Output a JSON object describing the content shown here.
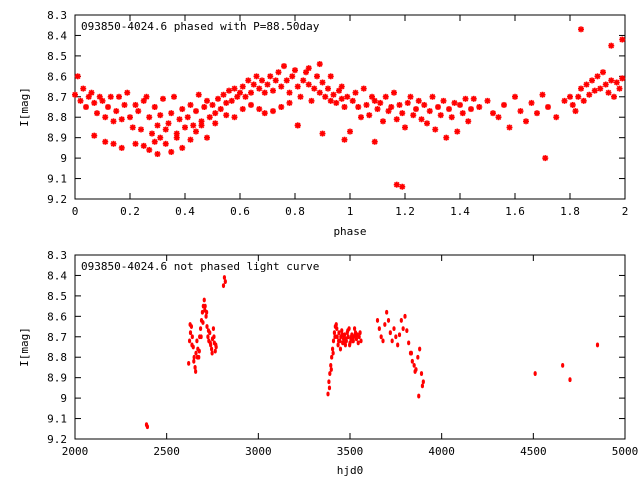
{
  "chart_data": [
    {
      "type": "scatter",
      "title": "093850-4024.6 phased with P=88.50day",
      "xlabel": "phase",
      "ylabel": "I[mag]",
      "xlim": [
        0,
        2
      ],
      "ylim": [
        8.3,
        9.2
      ],
      "y_inverted": true,
      "xticks": [
        "0",
        "0.2",
        "0.4",
        "0.6",
        "0.8",
        "1",
        "1.2",
        "1.4",
        "1.6",
        "1.8",
        "2"
      ],
      "yticks": [
        "8.3",
        "8.4",
        "8.5",
        "8.6",
        "8.7",
        "8.8",
        "8.9",
        "9",
        "9.1",
        "9.2"
      ],
      "grid": false,
      "marker": "star",
      "color": "#ff0000",
      "series": [
        {
          "x": [
            0.0,
            0.01,
            0.02,
            0.03,
            0.04,
            0.05,
            0.06,
            0.07,
            0.08,
            0.09,
            0.1,
            0.11,
            0.12,
            0.13,
            0.14,
            0.15,
            0.16,
            0.17,
            0.18,
            0.19,
            0.2,
            0.21,
            0.22,
            0.23,
            0.24,
            0.25,
            0.26,
            0.27,
            0.28,
            0.29,
            0.3,
            0.31,
            0.32,
            0.33,
            0.34,
            0.35,
            0.36,
            0.37,
            0.38,
            0.39,
            0.4,
            0.41,
            0.42,
            0.43,
            0.44,
            0.45,
            0.46,
            0.47,
            0.48,
            0.49,
            0.5,
            0.51,
            0.52,
            0.53,
            0.54,
            0.55,
            0.56,
            0.57,
            0.58,
            0.59,
            0.6,
            0.61,
            0.62,
            0.63,
            0.64,
            0.65,
            0.66,
            0.67,
            0.68,
            0.69,
            0.7,
            0.71,
            0.72,
            0.73,
            0.74,
            0.75,
            0.76,
            0.77,
            0.78,
            0.79,
            0.8,
            0.81,
            0.82,
            0.83,
            0.84,
            0.85,
            0.86,
            0.87,
            0.88,
            0.89,
            0.9,
            0.91,
            0.92,
            0.93,
            0.94,
            0.95,
            0.96,
            0.97,
            0.98,
            0.99,
            0.07,
            0.11,
            0.14,
            0.17,
            0.22,
            0.25,
            0.27,
            0.29,
            0.3,
            0.31,
            0.33,
            0.35,
            0.37,
            0.39,
            0.42,
            0.44,
            0.46,
            0.48,
            0.51,
            0.55,
            0.58,
            0.61,
            0.64,
            0.67,
            0.69,
            0.72,
            0.75,
            0.78,
            0.81,
            0.85,
            0.89,
            0.93,
            0.97,
            1.0,
            1.01,
            1.02,
            1.03,
            1.04,
            1.05,
            1.06,
            1.07,
            1.08,
            1.09,
            1.1,
            1.11,
            1.12,
            1.13,
            1.14,
            1.15,
            1.16,
            1.17,
            1.18,
            1.19,
            1.2,
            1.21,
            1.22,
            1.23,
            1.24,
            1.25,
            1.26,
            1.27,
            1.28,
            1.29,
            1.3,
            1.31,
            1.32,
            1.33,
            1.34,
            1.35,
            1.36,
            1.37,
            1.38,
            1.39,
            1.4,
            1.41,
            1.42,
            1.43,
            1.44,
            1.45,
            1.47,
            1.5,
            1.52,
            1.54,
            1.56,
            1.58,
            1.6,
            1.62,
            1.64,
            1.66,
            1.68,
            1.7,
            1.72,
            1.75,
            1.78,
            1.8,
            1.81,
            1.82,
            1.83,
            1.84,
            1.85,
            1.86,
            1.87,
            1.88,
            1.89,
            1.9,
            1.91,
            1.92,
            1.93,
            1.94,
            1.95,
            1.96,
            1.97,
            1.98,
            1.99,
            1.17,
            1.19,
            1.09,
            0.98,
            1.71,
            1.84,
            1.95,
            1.99,
            0.81,
            0.9
          ],
          "y": [
            8.69,
            8.6,
            8.72,
            8.66,
            8.75,
            8.7,
            8.68,
            8.73,
            8.78,
            8.7,
            8.72,
            8.8,
            8.75,
            8.7,
            8.82,
            8.77,
            8.7,
            8.81,
            8.74,
            8.68,
            8.8,
            8.85,
            8.74,
            8.77,
            8.86,
            8.72,
            8.7,
            8.8,
            8.88,
            8.75,
            8.84,
            8.79,
            8.71,
            8.86,
            8.83,
            8.78,
            8.7,
            8.9,
            8.81,
            8.76,
            8.85,
            8.8,
            8.74,
            8.84,
            8.77,
            8.69,
            8.82,
            8.75,
            8.72,
            8.8,
            8.74,
            8.78,
            8.71,
            8.76,
            8.69,
            8.73,
            8.67,
            8.72,
            8.66,
            8.7,
            8.68,
            8.65,
            8.7,
            8.62,
            8.68,
            8.64,
            8.6,
            8.66,
            8.62,
            8.68,
            8.64,
            8.6,
            8.67,
            8.62,
            8.58,
            8.65,
            8.55,
            8.62,
            8.68,
            8.6,
            8.57,
            8.65,
            8.7,
            8.62,
            8.58,
            8.64,
            8.72,
            8.66,
            8.6,
            8.68,
            8.63,
            8.7,
            8.66,
            8.72,
            8.69,
            8.73,
            8.67,
            8.71,
            8.75,
            8.7,
            8.89,
            8.92,
            8.93,
            8.95,
            8.93,
            8.94,
            8.96,
            8.92,
            8.98,
            8.9,
            8.93,
            8.97,
            8.88,
            8.95,
            8.91,
            8.87,
            8.84,
            8.9,
            8.83,
            8.79,
            8.8,
            8.76,
            8.74,
            8.76,
            8.78,
            8.77,
            8.75,
            8.73,
            8.84,
            8.56,
            8.54,
            8.6,
            8.65,
            8.87,
            8.72,
            8.68,
            8.75,
            8.8,
            8.66,
            8.74,
            8.79,
            8.7,
            8.72,
            8.76,
            8.73,
            8.82,
            8.7,
            8.77,
            8.75,
            8.68,
            8.81,
            8.74,
            8.78,
            8.85,
            8.73,
            8.7,
            8.79,
            8.76,
            8.72,
            8.81,
            8.74,
            8.83,
            8.77,
            8.7,
            8.86,
            8.75,
            8.79,
            8.72,
            8.9,
            8.76,
            8.8,
            8.73,
            8.87,
            8.74,
            8.78,
            8.71,
            8.82,
            8.76,
            8.71,
            8.75,
            8.72,
            8.78,
            8.8,
            8.74,
            8.85,
            8.7,
            8.77,
            8.82,
            8.73,
            8.78,
            8.69,
            8.75,
            8.8,
            8.72,
            8.7,
            8.74,
            8.77,
            8.7,
            8.66,
            8.72,
            8.64,
            8.69,
            8.62,
            8.67,
            8.6,
            8.66,
            8.58,
            8.64,
            8.68,
            8.62,
            8.7,
            8.63,
            8.66,
            8.61,
            9.13,
            9.14,
            8.92,
            8.91,
            9.0,
            8.37,
            8.45,
            8.42,
            8.84,
            8.88
          ]
        }
      ]
    },
    {
      "type": "scatter",
      "title": "093850-4024.6 not phased light curve",
      "xlabel": "hjd0",
      "ylabel": "I[mag]",
      "xlim": [
        2000,
        5000
      ],
      "ylim": [
        8.3,
        9.2
      ],
      "y_inverted": true,
      "xticks": [
        "2000",
        "2500",
        "3000",
        "3500",
        "4000",
        "4500",
        "5000"
      ],
      "yticks": [
        "8.3",
        "8.4",
        "8.5",
        "8.6",
        "8.7",
        "8.8",
        "8.9",
        "9",
        "9.1",
        "9.2"
      ],
      "grid": false,
      "marker": "dot",
      "color": "#ff0000",
      "series": [
        {
          "x": [
            2390,
            2395,
            2620,
            2625,
            2630,
            2635,
            2640,
            2645,
            2650,
            2655,
            2660,
            2665,
            2670,
            2675,
            2680,
            2685,
            2690,
            2695,
            2700,
            2705,
            2710,
            2715,
            2720,
            2725,
            2730,
            2735,
            2740,
            2745,
            2750,
            2755,
            2760,
            2765,
            2770,
            2628,
            2638,
            2648,
            2658,
            2668,
            2678,
            2688,
            2698,
            2708,
            2718,
            2728,
            2738,
            2748,
            2758,
            2768,
            2810,
            2815,
            2820,
            3380,
            3385,
            3390,
            3395,
            3400,
            3405,
            3410,
            3415,
            3420,
            3425,
            3430,
            3435,
            3440,
            3445,
            3450,
            3455,
            3460,
            3465,
            3470,
            3475,
            3480,
            3485,
            3490,
            3495,
            3500,
            3505,
            3510,
            3515,
            3520,
            3525,
            3530,
            3535,
            3540,
            3545,
            3550,
            3555,
            3560,
            3388,
            3398,
            3408,
            3418,
            3428,
            3438,
            3448,
            3458,
            3468,
            3478,
            3488,
            3498,
            3508,
            3518,
            3528,
            3650,
            3660,
            3670,
            3680,
            3690,
            3700,
            3710,
            3720,
            3730,
            3740,
            3750,
            3760,
            3770,
            3780,
            3790,
            3800,
            3810,
            3820,
            3830,
            3840,
            3850,
            3860,
            3870,
            3880,
            3890,
            3900,
            3835,
            3855,
            3875,
            3895,
            4510,
            4660,
            4700,
            4850
          ],
          "y": [
            9.13,
            9.14,
            8.83,
            8.72,
            8.68,
            8.65,
            8.7,
            8.75,
            8.8,
            8.85,
            8.78,
            8.72,
            8.76,
            8.8,
            8.7,
            8.66,
            8.62,
            8.58,
            8.55,
            8.52,
            8.55,
            8.6,
            8.65,
            8.7,
            8.72,
            8.68,
            8.74,
            8.76,
            8.71,
            8.66,
            8.73,
            8.77,
            8.75,
            8.64,
            8.74,
            8.82,
            8.87,
            8.8,
            8.77,
            8.7,
            8.63,
            8.57,
            8.58,
            8.67,
            8.73,
            8.78,
            8.7,
            8.74,
            8.45,
            8.41,
            8.43,
            8.98,
            8.92,
            8.88,
            8.84,
            8.8,
            8.76,
            8.72,
            8.68,
            8.65,
            8.64,
            8.7,
            8.74,
            8.68,
            8.72,
            8.7,
            8.67,
            8.73,
            8.71,
            8.69,
            8.74,
            8.72,
            8.68,
            8.7,
            8.66,
            8.73,
            8.71,
            8.69,
            8.72,
            8.7,
            8.66,
            8.68,
            8.71,
            8.69,
            8.73,
            8.7,
            8.68,
            8.72,
            8.95,
            8.86,
            8.78,
            8.7,
            8.66,
            8.72,
            8.76,
            8.69,
            8.73,
            8.71,
            8.67,
            8.74,
            8.7,
            8.72,
            8.69,
            8.62,
            8.66,
            8.7,
            8.72,
            8.64,
            8.58,
            8.62,
            8.68,
            8.72,
            8.66,
            8.7,
            8.74,
            8.69,
            8.62,
            8.66,
            8.6,
            8.67,
            8.73,
            8.78,
            8.82,
            8.84,
            8.86,
            8.8,
            8.76,
            8.88,
            8.92,
            8.78,
            8.87,
            8.99,
            8.94,
            8.88,
            8.84,
            8.91,
            8.74
          ]
        }
      ]
    }
  ]
}
